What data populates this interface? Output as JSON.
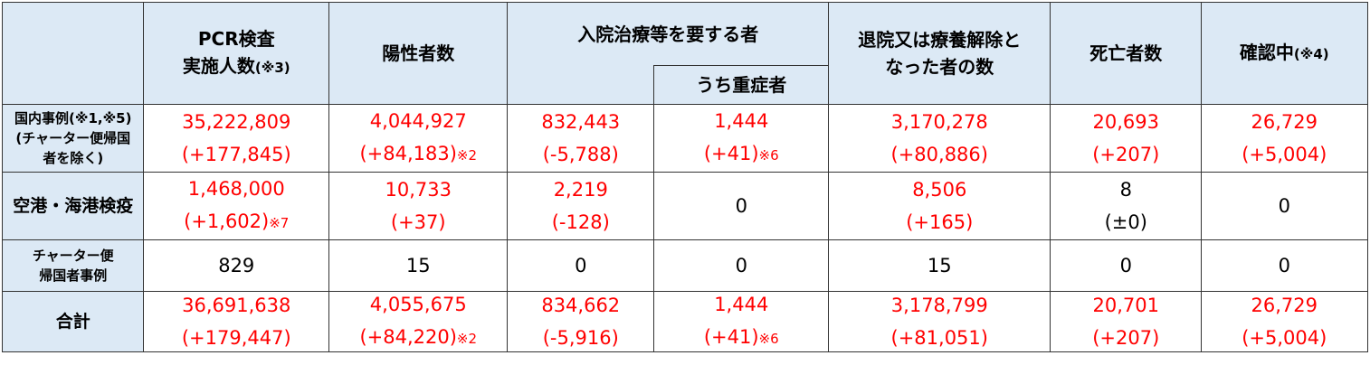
{
  "table": {
    "header": [
      {
        "lines": [
          "PCR検査",
          "実施人数"
        ],
        "note": "(※3)"
      },
      {
        "lines": [
          "陽性者数"
        ]
      },
      {
        "lines": [
          "入院治療等を要する者"
        ],
        "sub": "うち重症者"
      },
      {
        "lines": [
          "退院又は療養解除と",
          "なった者の数"
        ]
      },
      {
        "lines": [
          "死亡者数"
        ]
      },
      {
        "lines": [
          "確認中"
        ],
        "note": "(※4)"
      }
    ],
    "rows": [
      {
        "label": [
          "国内事例(※1,※5)",
          "(チャーター便帰国",
          "者を除く)"
        ],
        "cells": [
          {
            "value": "35,222,809",
            "change": "(+177,845)",
            "color": "#ff0000"
          },
          {
            "value": "4,044,927",
            "change": "(+84,183)",
            "note": "※2",
            "color": "#ff0000"
          },
          {
            "value": "832,443",
            "change": "(-5,788)",
            "color": "#ff0000"
          },
          {
            "value": "1,444",
            "change": "(+41)",
            "note": "※6",
            "color": "#ff0000"
          },
          {
            "value": "3,170,278",
            "change": "(+80,886)",
            "color": "#ff0000"
          },
          {
            "value": "20,693",
            "change": "(+207)",
            "color": "#ff0000"
          },
          {
            "value": "26,729",
            "change": "(+5,004)",
            "color": "#ff0000"
          }
        ]
      },
      {
        "label": [
          "空港・海港検疫"
        ],
        "cells": [
          {
            "value": "1,468,000",
            "change": "(+1,602)",
            "note": "※7",
            "color": "#ff0000"
          },
          {
            "value": "10,733",
            "change": "(+37)",
            "color": "#ff0000"
          },
          {
            "value": "2,219",
            "change": "(-128)",
            "color": "#ff0000"
          },
          {
            "value": "0",
            "color": "#000000"
          },
          {
            "value": "8,506",
            "change": "(+165)",
            "color": "#ff0000"
          },
          {
            "value": "8",
            "change": "(±0)",
            "color": "#000000"
          },
          {
            "value": "0",
            "color": "#000000"
          }
        ]
      },
      {
        "label": [
          "チャーター便",
          "帰国者事例"
        ],
        "cells": [
          {
            "value": "829",
            "color": "#000000"
          },
          {
            "value": "15",
            "color": "#000000"
          },
          {
            "value": "0",
            "color": "#000000"
          },
          {
            "value": "0",
            "color": "#000000"
          },
          {
            "value": "15",
            "color": "#000000"
          },
          {
            "value": "0",
            "color": "#000000"
          },
          {
            "value": "0",
            "color": "#000000"
          }
        ]
      },
      {
        "label": [
          "合計"
        ],
        "cells": [
          {
            "value": "36,691,638",
            "change": "(+179,447)",
            "color": "#ff0000"
          },
          {
            "value": "4,055,675",
            "change": "(+84,220)",
            "note": "※2",
            "color": "#ff0000"
          },
          {
            "value": "834,662",
            "change": "(-5,916)",
            "color": "#ff0000"
          },
          {
            "value": "1,444",
            "change": "(+41)",
            "note": "※6",
            "color": "#ff0000"
          },
          {
            "value": "3,178,799",
            "change": "(+81,051)",
            "color": "#ff0000"
          },
          {
            "value": "20,701",
            "change": "(+207)",
            "color": "#ff0000"
          },
          {
            "value": "26,729",
            "change": "(+5,004)",
            "color": "#ff0000"
          }
        ]
      }
    ]
  }
}
